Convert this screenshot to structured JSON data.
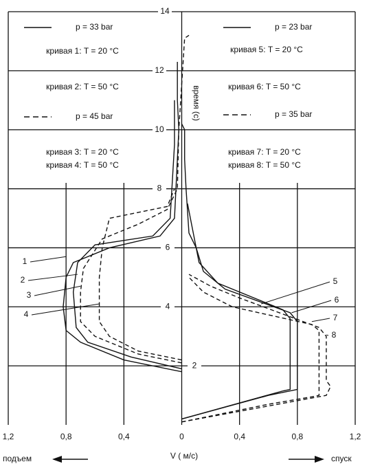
{
  "chart_data": {
    "type": "line",
    "xlabel": "V ( м/с)",
    "ylabel": "время (с)",
    "left_label": "подъем",
    "right_label": "спуск",
    "xlim": [
      -1.2,
      1.2
    ],
    "ylim": [
      0,
      14
    ],
    "xticks": [
      {
        "value": -1.2,
        "label": "1,2"
      },
      {
        "value": -0.8,
        "label": "0,8"
      },
      {
        "value": -0.4,
        "label": "0,4"
      },
      0,
      {
        "value": 0.4,
        "label": "0,4"
      },
      {
        "value": 0.8,
        "label": "0,8"
      },
      {
        "value": 1.2,
        "label": "1,2"
      }
    ],
    "yticks": [
      2,
      4,
      6,
      8,
      10,
      12,
      14
    ],
    "grid": true,
    "legend_texts": [
      "p = 33 bar",
      "кривая 1: T = 20 °C",
      "кривая 2: T = 50 °C",
      "p = 45 bar",
      "кривая 3: T = 20 °C",
      "кривая 4: T = 50 °C",
      "p = 23 bar",
      "кривая 5: T = 20 °C",
      "кривая 6: T = 50 °C",
      "p = 35 bar",
      "кривая 7: T = 20 °C",
      "кривая 8: T = 50 °C"
    ],
    "series": [
      {
        "name": "1",
        "dash": false,
        "x": [
          0,
          -0.4,
          -0.7,
          -0.8,
          -0.82,
          -0.8,
          -0.75,
          -0.5,
          -0.15,
          -0.05,
          -0.03,
          -0.02,
          -0.03,
          -0.03
        ],
        "values": [
          1.8,
          2.2,
          2.8,
          3.2,
          4,
          5,
          5.5,
          6.0,
          6.4,
          7,
          9,
          10,
          11,
          12.3
        ]
      },
      {
        "name": "2",
        "dash": false,
        "x": [
          0,
          -0.35,
          -0.65,
          -0.73,
          -0.75,
          -0.72,
          -0.6,
          -0.2,
          -0.08,
          -0.05,
          -0.05
        ],
        "values": [
          1.9,
          2.3,
          2.8,
          3.3,
          4.5,
          5.5,
          6.1,
          6.4,
          7,
          9.5,
          11
        ]
      },
      {
        "name": "3",
        "dash": true,
        "x": [
          0,
          -0.3,
          -0.6,
          -0.7,
          -0.7,
          -0.68,
          -0.55,
          -0.3,
          -0.1,
          -0.03,
          -0.02,
          0.02,
          0.05
        ],
        "values": [
          2.1,
          2.4,
          3,
          3.5,
          4.5,
          5.3,
          6.3,
          6.8,
          7.3,
          8,
          10,
          13.1,
          13.2
        ]
      },
      {
        "name": "4",
        "dash": true,
        "x": [
          0,
          -0.3,
          -0.5,
          -0.57,
          -0.57,
          -0.55,
          -0.5,
          -0.3,
          -0.1,
          -0.05
        ],
        "values": [
          2.2,
          2.5,
          3,
          3.5,
          5,
          6,
          7,
          7.2,
          7.4,
          8
        ]
      },
      {
        "name": "5",
        "dash": false,
        "x": [
          0,
          0.3,
          0.6,
          0.8,
          0.8,
          0.75,
          0.3,
          0.15,
          0.1,
          0.05,
          0.03,
          0.02,
          0.02,
          0
        ],
        "values": [
          0.2,
          0.6,
          1.0,
          1.2,
          3.5,
          3.8,
          4.6,
          5.2,
          6,
          6.5,
          8,
          9,
          10,
          10.2
        ]
      },
      {
        "name": "6",
        "dash": false,
        "x": [
          0,
          0.7,
          0.75,
          0.75,
          0.7,
          0.25,
          0.12,
          0.08,
          0.04
        ],
        "values": [
          0.2,
          1.15,
          1.2,
          3.6,
          3.9,
          4.8,
          5.5,
          6.5,
          7.5
        ]
      },
      {
        "name": "7",
        "dash": true,
        "x": [
          0,
          0.3,
          0.6,
          0.9,
          0.95,
          0.95,
          0.9,
          0.35,
          0.15,
          0.05
        ],
        "values": [
          0.1,
          0.4,
          0.7,
          0.95,
          1.0,
          3.2,
          3.4,
          4.0,
          4.5,
          5
        ]
      },
      {
        "name": "8",
        "dash": true,
        "x": [
          0,
          1.0,
          1.03,
          1.0,
          1.0,
          0.95,
          0.4,
          0.2,
          0.05
        ],
        "values": [
          0.1,
          1.0,
          1.3,
          1.5,
          3.0,
          3.3,
          4.3,
          4.7,
          5.1
        ]
      }
    ]
  }
}
